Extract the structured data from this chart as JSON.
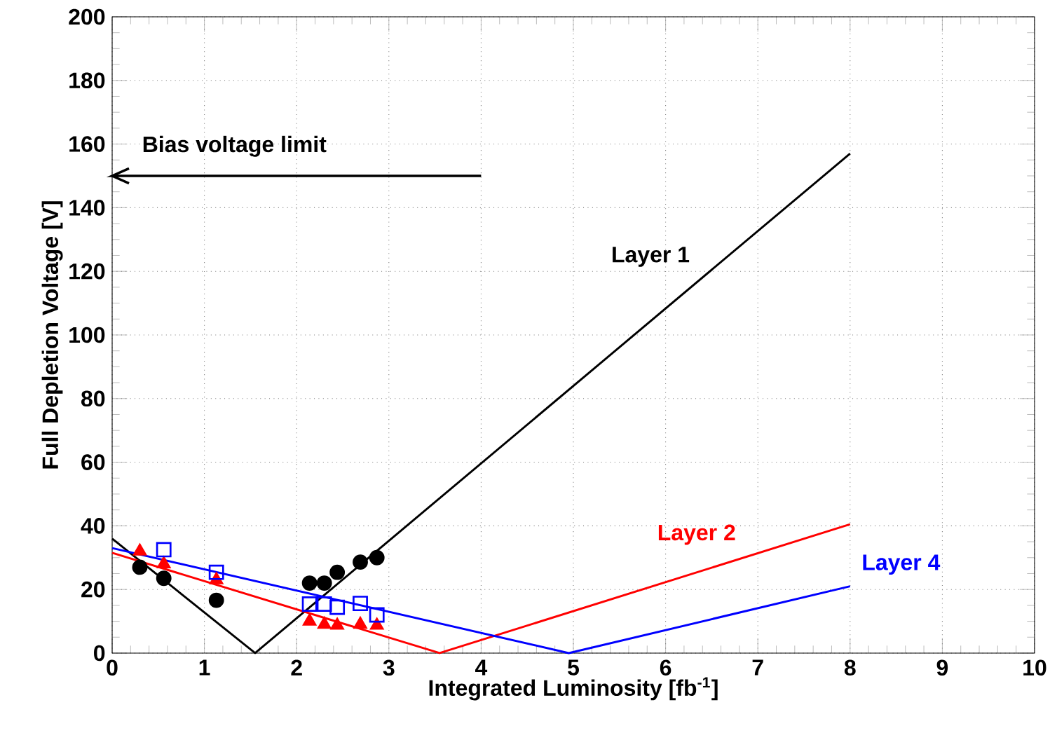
{
  "chart_data": {
    "type": "line",
    "xlabel": "Integrated Luminosity [fb$^{-1}$]",
    "ylabel": "Full Depletion Voltage [V]",
    "xlim": [
      0,
      10
    ],
    "ylim": [
      0,
      200
    ],
    "xticks": [
      0,
      1,
      2,
      3,
      4,
      5,
      6,
      7,
      8,
      9,
      10
    ],
    "yticks": [
      0,
      20,
      40,
      60,
      80,
      100,
      120,
      140,
      160,
      180,
      200
    ],
    "grid": true,
    "legend": false,
    "ref_lines": [
      {
        "axis": "y",
        "value": 150,
        "label": "Bias voltage limit"
      }
    ],
    "series": [
      {
        "name": "Layer 1",
        "color": "#000000",
        "x": [
          0,
          1.55,
          8
        ],
        "values": [
          36,
          0,
          157
        ]
      },
      {
        "name": "Layer 2",
        "color": "#ff0000",
        "x": [
          0,
          3.55,
          8
        ],
        "values": [
          31.5,
          0,
          40.5
        ]
      },
      {
        "name": "Layer 4",
        "color": "#0000ff",
        "x": [
          0,
          4.95,
          8
        ],
        "values": [
          33,
          0,
          21
        ]
      },
      {
        "type": "scatter",
        "marker": "circle",
        "color": "#000000",
        "x": [
          0.3,
          0.56,
          1.13,
          2.14,
          2.3,
          2.44,
          2.69,
          2.87
        ],
        "values": [
          27,
          23.5,
          16.6,
          22,
          22,
          25.4,
          28.6,
          30
        ]
      },
      {
        "type": "scatter",
        "marker": "triangle",
        "color": "#ff0000",
        "x": [
          0.3,
          0.56,
          1.13,
          2.14,
          2.3,
          2.44,
          2.69,
          2.87
        ],
        "values": [
          32,
          28,
          23,
          10,
          9,
          8.7,
          9,
          8.7
        ]
      },
      {
        "type": "scatter",
        "marker": "square",
        "color": "#0000ff",
        "x": [
          0.56,
          1.13,
          2.14,
          2.3,
          2.44,
          2.69,
          2.87
        ],
        "values": [
          32.5,
          25.4,
          15.4,
          15.4,
          14.4,
          15.6,
          12
        ]
      }
    ]
  }
}
